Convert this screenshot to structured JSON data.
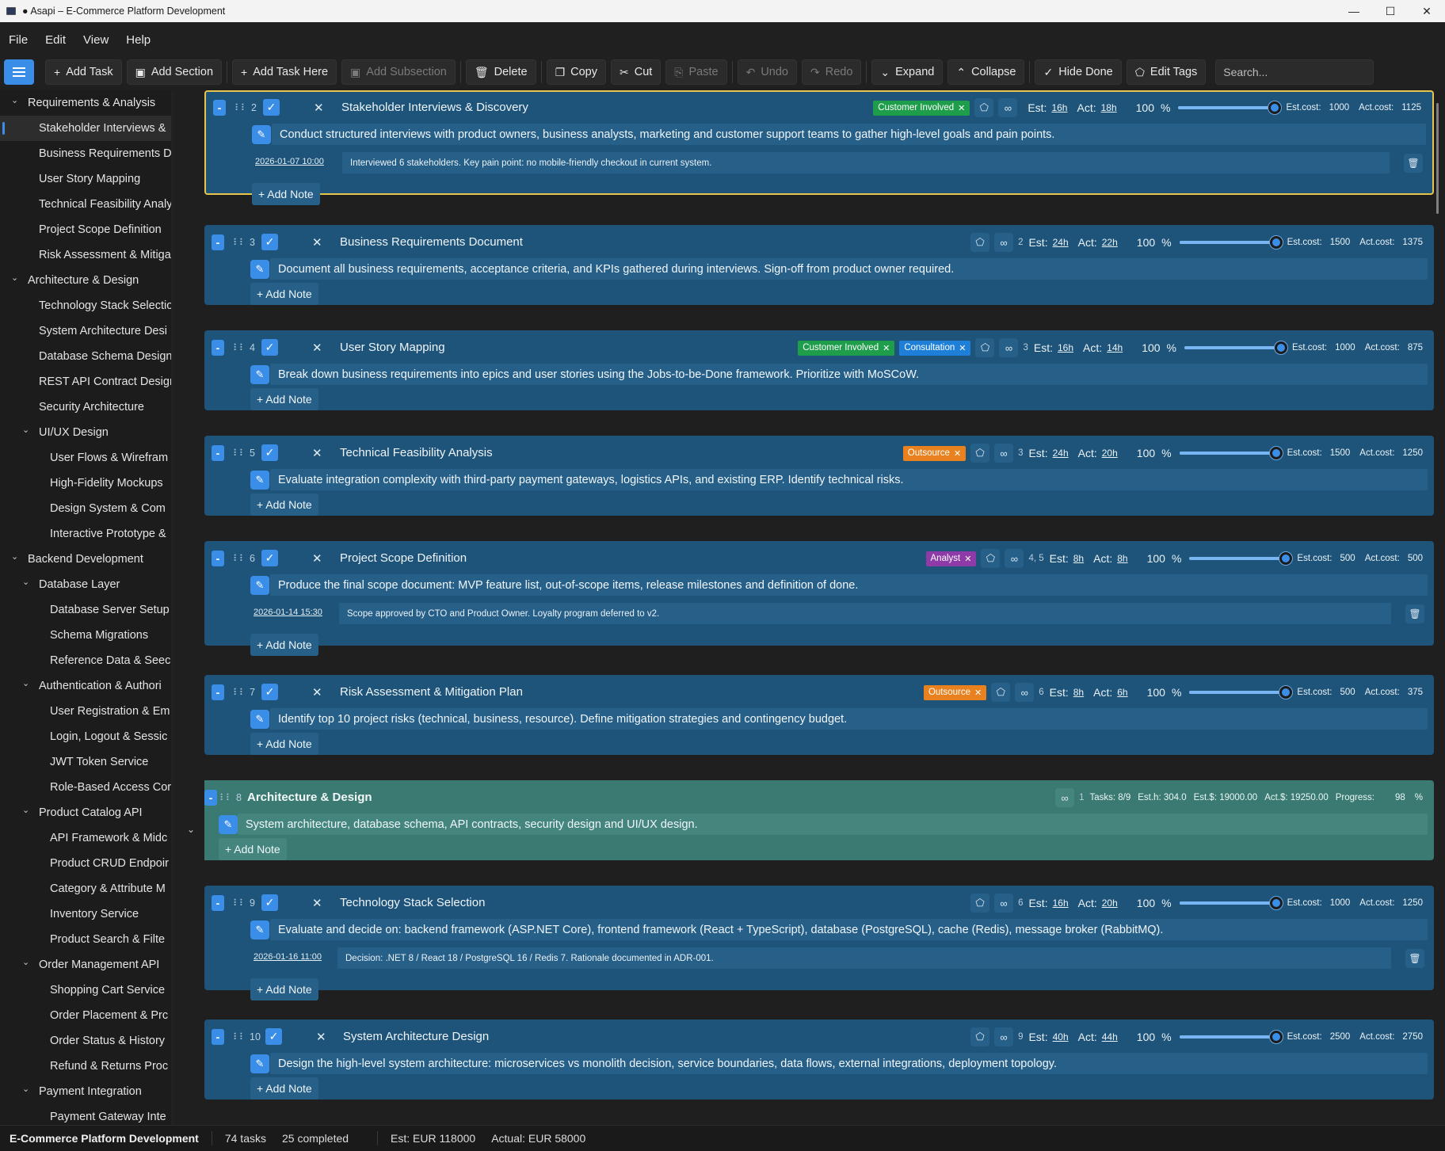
{
  "window": {
    "title": "● Asapi – E-Commerce Platform Development",
    "min": "—",
    "max": "☐",
    "close": "✕"
  },
  "menu": [
    "File",
    "Edit",
    "View",
    "Help"
  ],
  "toolbar": {
    "add_task": "Add Task",
    "add_section": "Add Section",
    "add_task_here": "Add Task Here",
    "add_subsection": "Add Subsection",
    "delete": "Delete",
    "copy": "Copy",
    "cut": "Cut",
    "paste": "Paste",
    "undo": "Undo",
    "redo": "Redo",
    "expand": "Expand",
    "collapse": "Collapse",
    "hide_done": "Hide Done",
    "edit_tags": "Edit Tags",
    "search_placeholder": "Search..."
  },
  "sidebar": {
    "items": [
      {
        "label": "Requirements & Analysis",
        "level": 0,
        "chev": true
      },
      {
        "label": "Stakeholder Interviews &",
        "level": 1,
        "selected": true
      },
      {
        "label": "Business Requirements D",
        "level": 1
      },
      {
        "label": "User Story Mapping",
        "level": 1
      },
      {
        "label": "Technical Feasibility Analy",
        "level": 1
      },
      {
        "label": "Project Scope Definition",
        "level": 1
      },
      {
        "label": "Risk Assessment & Mitiga",
        "level": 1
      },
      {
        "label": "Architecture & Design",
        "level": 0,
        "chev": true
      },
      {
        "label": "Technology Stack Selectio",
        "level": 1
      },
      {
        "label": "System Architecture Desi",
        "level": 1
      },
      {
        "label": "Database Schema Design",
        "level": 1
      },
      {
        "label": "REST API Contract Desigr",
        "level": 1
      },
      {
        "label": "Security Architecture",
        "level": 1
      },
      {
        "label": "UI/UX Design",
        "level": 1,
        "chev": true
      },
      {
        "label": "User Flows & Wirefram",
        "level": 2
      },
      {
        "label": "High-Fidelity Mockups",
        "level": 2
      },
      {
        "label": "Design System & Com",
        "level": 2
      },
      {
        "label": "Interactive Prototype &",
        "level": 2
      },
      {
        "label": "Backend Development",
        "level": 0,
        "chev": true
      },
      {
        "label": "Database Layer",
        "level": 1,
        "chev": true
      },
      {
        "label": "Database Server Setup",
        "level": 2
      },
      {
        "label": "Schema Migrations",
        "level": 2
      },
      {
        "label": "Reference Data & Seec",
        "level": 2
      },
      {
        "label": "Authentication & Authori",
        "level": 1,
        "chev": true
      },
      {
        "label": "User Registration & Em",
        "level": 2
      },
      {
        "label": "Login, Logout & Sessic",
        "level": 2
      },
      {
        "label": "JWT Token Service",
        "level": 2
      },
      {
        "label": "Role-Based Access Cor",
        "level": 2
      },
      {
        "label": "Product Catalog API",
        "level": 1,
        "chev": true
      },
      {
        "label": "API Framework & Midc",
        "level": 2
      },
      {
        "label": "Product CRUD Endpoir",
        "level": 2
      },
      {
        "label": "Category & Attribute M",
        "level": 2
      },
      {
        "label": "Inventory Service",
        "level": 2
      },
      {
        "label": "Product Search & Filte",
        "level": 2
      },
      {
        "label": "Order Management API",
        "level": 1,
        "chev": true
      },
      {
        "label": "Shopping Cart Service",
        "level": 2
      },
      {
        "label": "Order Placement & Prc",
        "level": 2
      },
      {
        "label": "Order Status & History",
        "level": 2
      },
      {
        "label": "Refund & Returns Proc",
        "level": 2
      },
      {
        "label": "Payment Integration",
        "level": 1,
        "chev": true
      },
      {
        "label": "Payment Gateway Inte",
        "level": 2
      }
    ]
  },
  "labels": {
    "est": "Est:",
    "act": "Act:",
    "est_cost": "Est.cost:",
    "act_cost": "Act.cost:",
    "percent_sign": "%",
    "add_note": "+ Add Note"
  },
  "colors": {
    "accent": "#3b8ee8",
    "task_bg": "#1e5479",
    "section_bg": "#3a7a72",
    "selected_border": "#e6c34a",
    "tag_green": "#1e9e4a",
    "tag_blue": "#1e7fd8",
    "tag_orange": "#e8811e",
    "tag_purple": "#8e3aa8"
  },
  "cards": [
    {
      "id": "2",
      "type": "task",
      "selected": true,
      "title": "Stakeholder Interviews & Discovery",
      "tags": [
        {
          "label": "Customer Involved",
          "color": "green"
        }
      ],
      "deps": "",
      "est": "16h",
      "act": "18h",
      "progress": 100,
      "progress_text": "100",
      "est_cost": "1000",
      "act_cost": "1125",
      "description": "Conduct structured interviews with product owners, business analysts, marketing and customer support teams to gather high-level goals and pain points.",
      "notes": [
        {
          "date": "2026-01-07 10:00",
          "text": "Interviewed 6 stakeholders. Key pain point: no mobile-friendly checkout in current system."
        }
      ]
    },
    {
      "id": "3",
      "type": "task",
      "title": "Business Requirements Document",
      "tags": [],
      "deps": "2",
      "est": "24h",
      "act": "22h",
      "progress": 100,
      "progress_text": "100",
      "est_cost": "1500",
      "act_cost": "1375",
      "description": "Document all business requirements, acceptance criteria, and KPIs gathered during interviews. Sign-off from product owner required.",
      "notes": []
    },
    {
      "id": "4",
      "type": "task",
      "title": "User Story Mapping",
      "tags": [
        {
          "label": "Customer Involved",
          "color": "green"
        },
        {
          "label": "Consultation",
          "color": "blue"
        }
      ],
      "deps": "3",
      "est": "16h",
      "act": "14h",
      "progress": 100,
      "progress_text": "100",
      "est_cost": "1000",
      "act_cost": "875",
      "description": "Break down business requirements into epics and user stories using the Jobs-to-be-Done framework. Prioritize with MoSCoW.",
      "notes": []
    },
    {
      "id": "5",
      "type": "task",
      "title": "Technical Feasibility Analysis",
      "tags": [
        {
          "label": "Outsource",
          "color": "orange"
        }
      ],
      "deps": "3",
      "est": "24h",
      "act": "20h",
      "progress": 100,
      "progress_text": "100",
      "est_cost": "1500",
      "act_cost": "1250",
      "description": "Evaluate integration complexity with third-party payment gateways, logistics APIs, and existing ERP. Identify technical risks.",
      "notes": []
    },
    {
      "id": "6",
      "type": "task",
      "title": "Project Scope Definition",
      "tags": [
        {
          "label": "Analyst",
          "color": "purple"
        }
      ],
      "deps": "4, 5",
      "est": "8h",
      "act": "8h",
      "progress": 100,
      "progress_text": "100",
      "est_cost": "500",
      "act_cost": "500",
      "description": "Produce the final scope document: MVP feature list, out-of-scope items, release milestones and definition of done.",
      "notes": [
        {
          "date": "2026-01-14 15:30",
          "text": "Scope approved by CTO and Product Owner. Loyalty program deferred to v2."
        }
      ]
    },
    {
      "id": "7",
      "type": "task",
      "title": "Risk Assessment & Mitigation Plan",
      "tags": [
        {
          "label": "Outsource",
          "color": "orange"
        }
      ],
      "deps": "6",
      "est": "8h",
      "act": "6h",
      "progress": 100,
      "progress_text": "100",
      "est_cost": "500",
      "act_cost": "375",
      "description": "Identify top 10 project risks (technical, business, resource). Define mitigation strategies and contingency budget.",
      "notes": []
    },
    {
      "id": "8",
      "type": "section",
      "title": "Architecture & Design",
      "deps": "1",
      "meta": {
        "tasks": "Tasks: 8/9",
        "est_h": "Est.h: 304.0",
        "est_money": "Est.$: 19000.00",
        "act_money": "Act.$: 19250.00",
        "progress_label": "Progress:",
        "progress_value": "98",
        "percent": "%"
      },
      "progress": 98,
      "description": "System architecture, database schema, API contracts, security design and UI/UX design.",
      "notes": []
    },
    {
      "id": "9",
      "type": "task",
      "title": "Technology Stack Selection",
      "tags": [],
      "deps": "6",
      "est": "16h",
      "act": "20h",
      "progress": 100,
      "progress_text": "100",
      "est_cost": "1000",
      "act_cost": "1250",
      "description": "Evaluate and decide on: backend framework (ASP.NET Core), frontend framework (React + TypeScript), database (PostgreSQL), cache (Redis), message broker (RabbitMQ).",
      "notes": [
        {
          "date": "2026-01-16 11:00",
          "text": "Decision: .NET 8 / React 18 / PostgreSQL 16 / Redis 7. Rationale documented in ADR-001."
        }
      ]
    },
    {
      "id": "10",
      "type": "task",
      "title": "System Architecture Design",
      "tags": [],
      "deps": "9",
      "est": "40h",
      "act": "44h",
      "progress": 100,
      "progress_text": "100",
      "est_cost": "2500",
      "act_cost": "2750",
      "description": "Design the high-level system architecture: microservices vs monolith decision, service boundaries, data flows, external integrations, deployment topology.",
      "notes": []
    }
  ],
  "status": {
    "project": "E-Commerce Platform Development",
    "tasks": "74 tasks",
    "completed": "25 completed",
    "est": "Est: EUR 118000",
    "actual": "Actual: EUR 58000"
  }
}
